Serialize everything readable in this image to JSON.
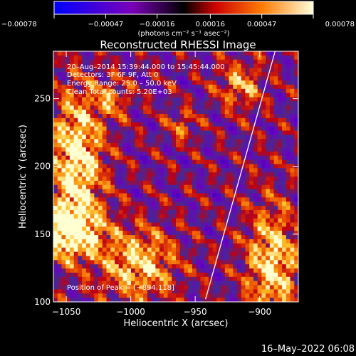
{
  "chart_data": {
    "type": "heatmap",
    "title": "Reconstructed RHESSI Image",
    "xlabel": "Heliocentric X (arcsec)",
    "ylabel": "Heliocentric Y (arcsec)",
    "xlim": [
      -1060,
      -870
    ],
    "ylim": [
      100,
      285
    ],
    "xticks": [
      -1050,
      -1000,
      -950,
      -900
    ],
    "xtick_labels": [
      "−1050",
      "−1000",
      "−950",
      "−900"
    ],
    "yticks": [
      100,
      150,
      200,
      250
    ],
    "ytick_labels": [
      "100",
      "150",
      "200",
      "250"
    ],
    "colorbar": {
      "range": [
        -0.00078,
        0.00078
      ],
      "ticks": [
        -0.00078,
        -0.00047,
        -0.00016,
        0.00016,
        0.00047,
        0.00078
      ],
      "tick_labels": [
        "−0.00078",
        "−0.00047",
        "−0.00016",
        "0.00016",
        "0.00047",
        "0.00078"
      ],
      "unit_label": "(photons cm⁻² s⁻¹ asec⁻²)",
      "colors": [
        "#0000cc",
        "#7a00b8",
        "#cc0000",
        "#ff7a00",
        "#ffffcc"
      ]
    },
    "annotations": [
      "20–Aug–2014  15:39:44.000 to 15:45:44.000",
      "Detectors: 3F 6F 9F, Att 0",
      "Energy Range: 25.0 – 50.0 keV",
      "Clean     Total counts: 5.20E+03"
    ],
    "peak_label": "Position of Peak = [−894,118]",
    "limb_line": {
      "x": [
        -942,
        -888
      ],
      "y": [
        102,
        285
      ]
    },
    "bright_sources": [
      {
        "x": -1042,
        "y": 203,
        "sx": 14,
        "sy": 36,
        "amp": 0.95
      },
      {
        "x": -1050,
        "y": 152,
        "sx": 18,
        "sy": 13,
        "amp": 1.0
      },
      {
        "x": -994,
        "y": 128,
        "sx": 20,
        "sy": 18,
        "amp": 0.75
      },
      {
        "x": -915,
        "y": 260,
        "sx": 12,
        "sy": 12,
        "amp": 0.55
      },
      {
        "x": -890,
        "y": 128,
        "sx": 14,
        "sy": 30,
        "amp": 0.8
      },
      {
        "x": -1015,
        "y": 250,
        "sx": 10,
        "sy": 10,
        "amp": 0.45
      },
      {
        "x": -960,
        "y": 230,
        "sx": 8,
        "sy": 8,
        "amp": 0.4
      }
    ]
  },
  "footer": {
    "timestamp": "16–May–2022 06:08"
  }
}
